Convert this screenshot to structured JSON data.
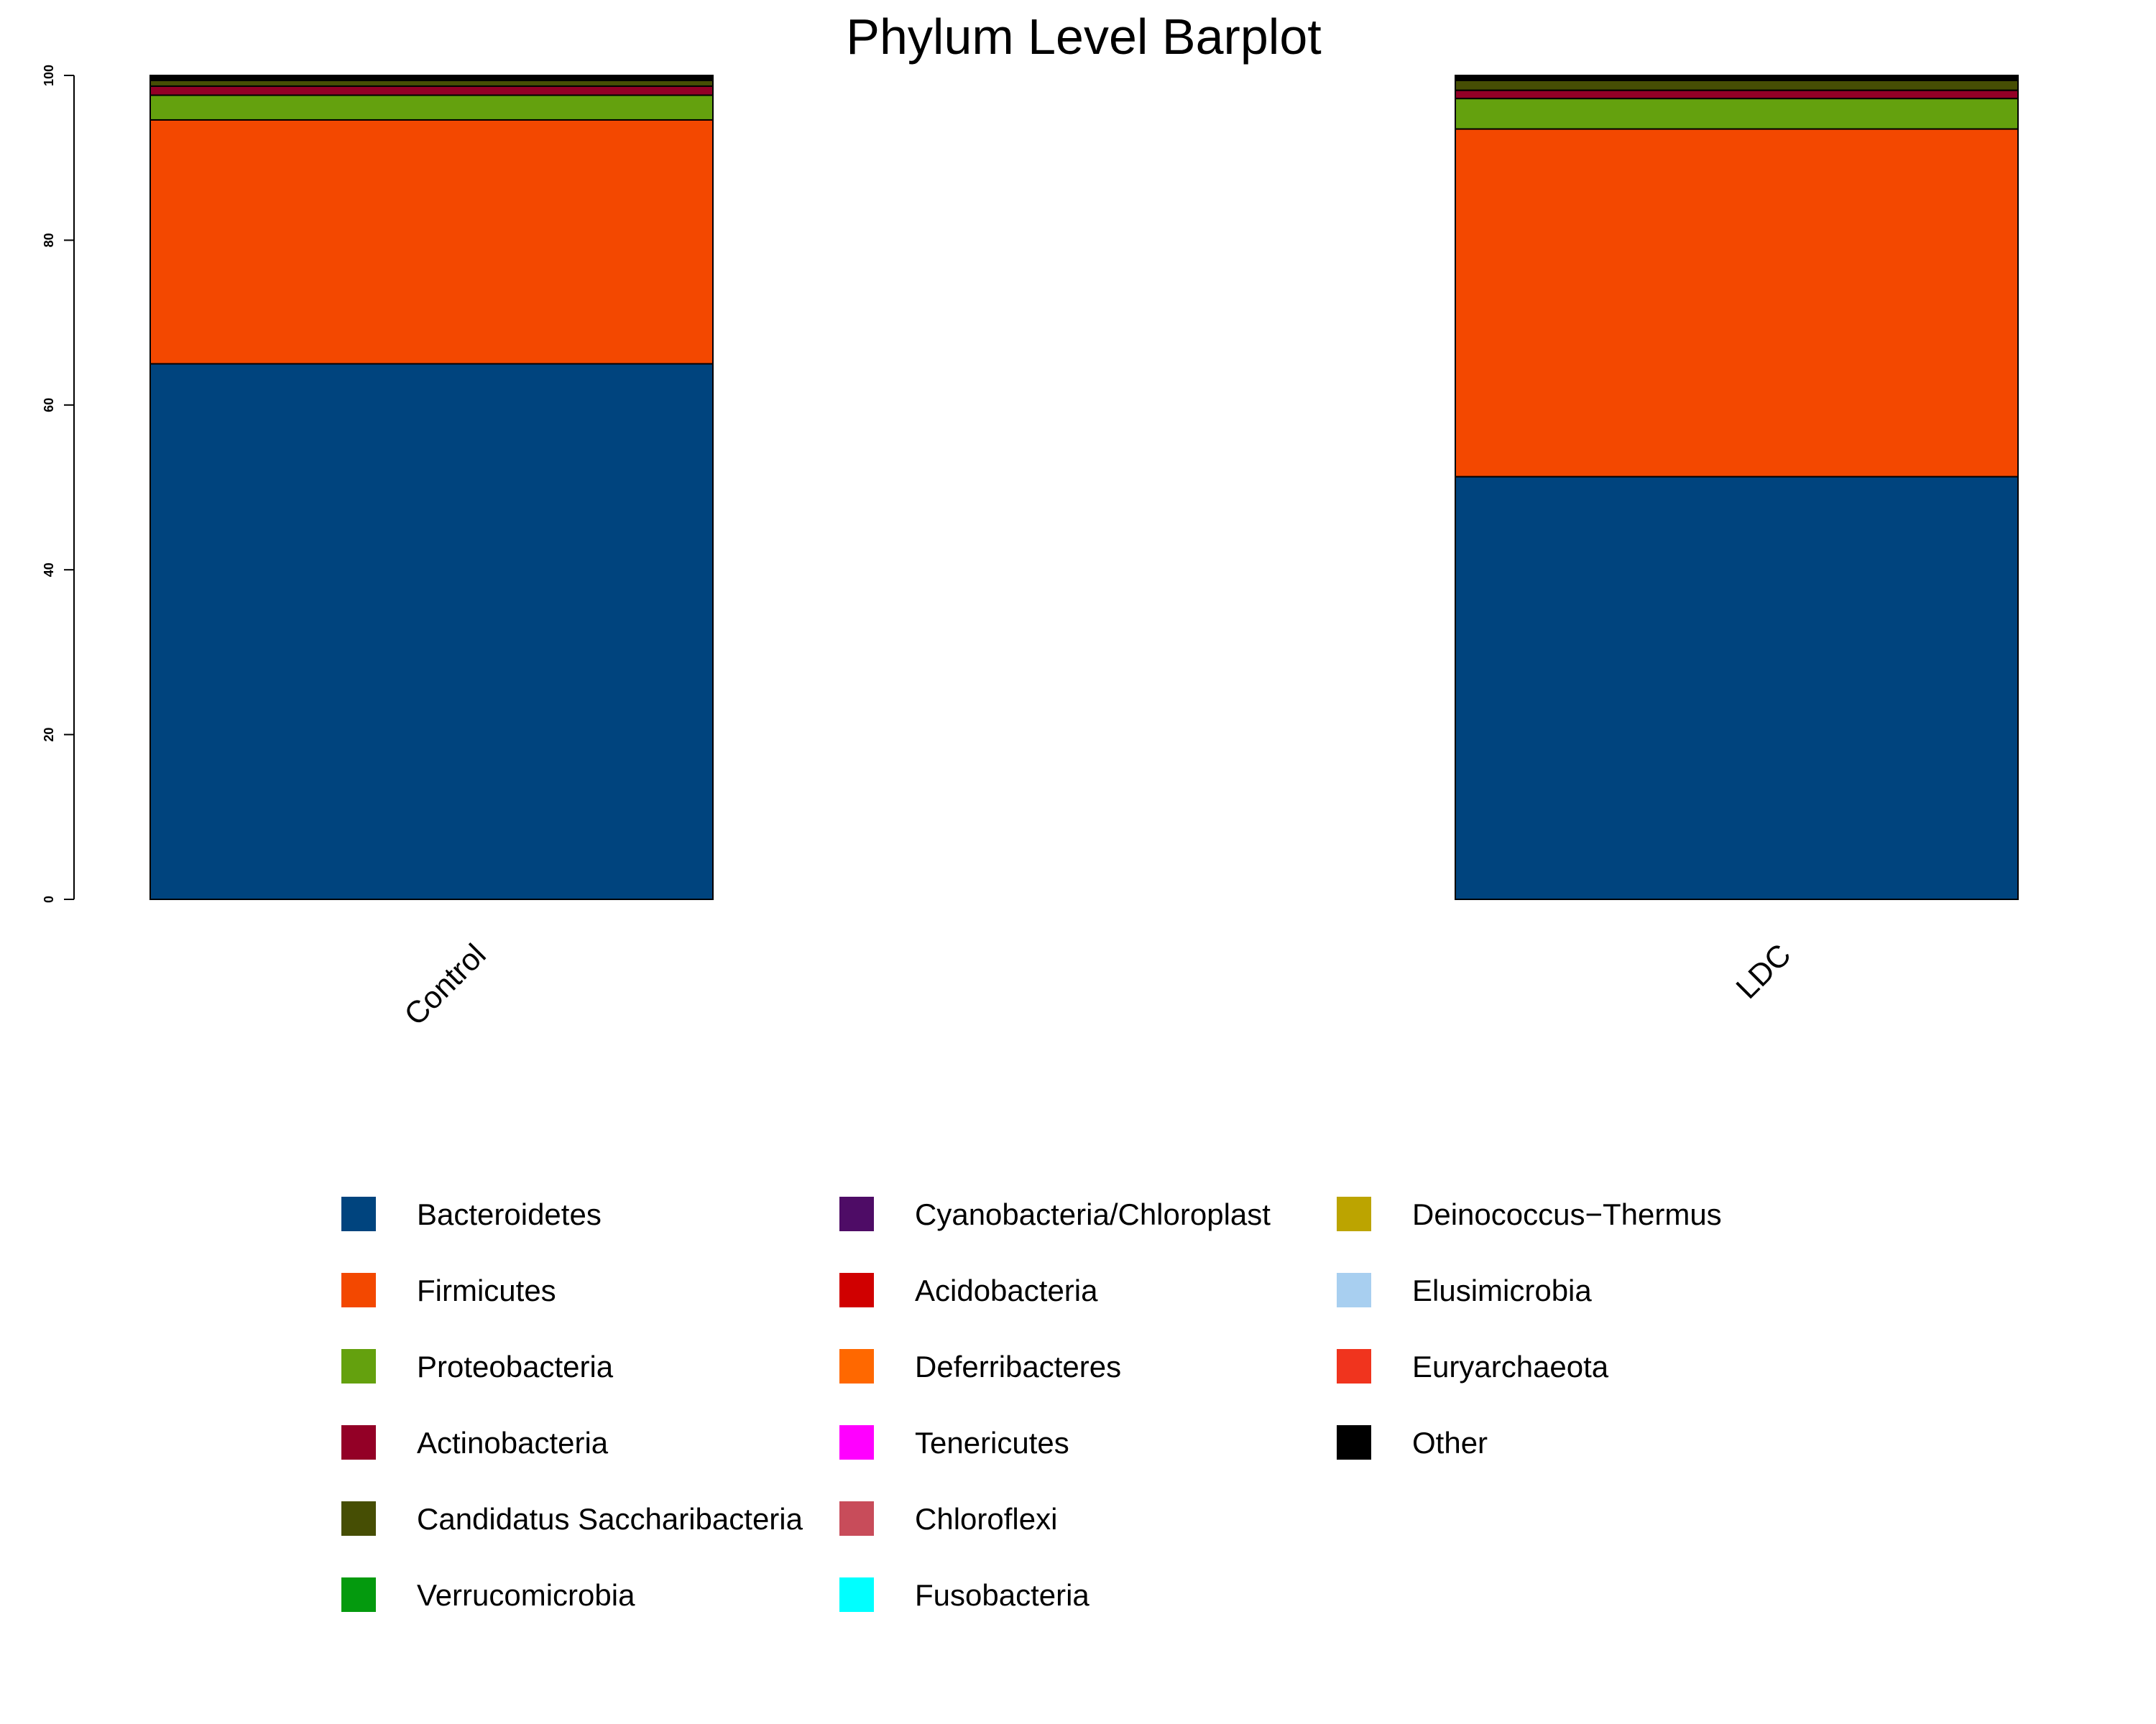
{
  "chart_data": {
    "type": "bar",
    "stacked": true,
    "title": "Phylum Level Barplot",
    "xlabel": "",
    "ylabel": "",
    "ylim": [
      0,
      100
    ],
    "y_ticks": [
      0,
      20,
      40,
      60,
      80,
      100
    ],
    "categories": [
      "Control",
      "LDC"
    ],
    "grid": false,
    "legend_position": "bottom",
    "series": [
      {
        "name": "Bacteroidetes",
        "color": "#00447E",
        "values": [
          65.0,
          51.3
        ]
      },
      {
        "name": "Firmicutes",
        "color": "#F34800",
        "values": [
          29.6,
          42.2
        ]
      },
      {
        "name": "Proteobacteria",
        "color": "#64A10E",
        "values": [
          3.0,
          3.7
        ]
      },
      {
        "name": "Actinobacteria",
        "color": "#930026",
        "values": [
          1.1,
          1.0
        ]
      },
      {
        "name": "Candidatus Saccharibacteria",
        "color": "#464E04",
        "values": [
          0.7,
          1.2
        ]
      },
      {
        "name": "Verrucomicrobia",
        "color": "#049A0E",
        "values": [
          0.0,
          0.0
        ]
      },
      {
        "name": "Cyanobacteria/Chloroplast",
        "color": "#4E0C66",
        "values": [
          0.0,
          0.0
        ]
      },
      {
        "name": "Acidobacteria",
        "color": "#D00000",
        "values": [
          0.0,
          0.0
        ]
      },
      {
        "name": "Deferribacteres",
        "color": "#FF6800",
        "values": [
          0.0,
          0.0
        ]
      },
      {
        "name": "Tenericutes",
        "color": "#FF00FF",
        "values": [
          0.0,
          0.0
        ]
      },
      {
        "name": "Chloroflexi",
        "color": "#C84C5A",
        "values": [
          0.0,
          0.0
        ]
      },
      {
        "name": "Fusobacteria",
        "color": "#00FFFF",
        "values": [
          0.0,
          0.0
        ]
      },
      {
        "name": "Deinococcus−Thermus",
        "color": "#BCA400",
        "values": [
          0.0,
          0.0
        ]
      },
      {
        "name": "Elusimicrobia",
        "color": "#A8CFF0",
        "values": [
          0.0,
          0.0
        ]
      },
      {
        "name": "Euryarchaeota",
        "color": "#F0341E",
        "values": [
          0.0,
          0.0
        ]
      },
      {
        "name": "Other",
        "color": "#000000",
        "values": [
          0.6,
          0.6
        ]
      }
    ]
  }
}
